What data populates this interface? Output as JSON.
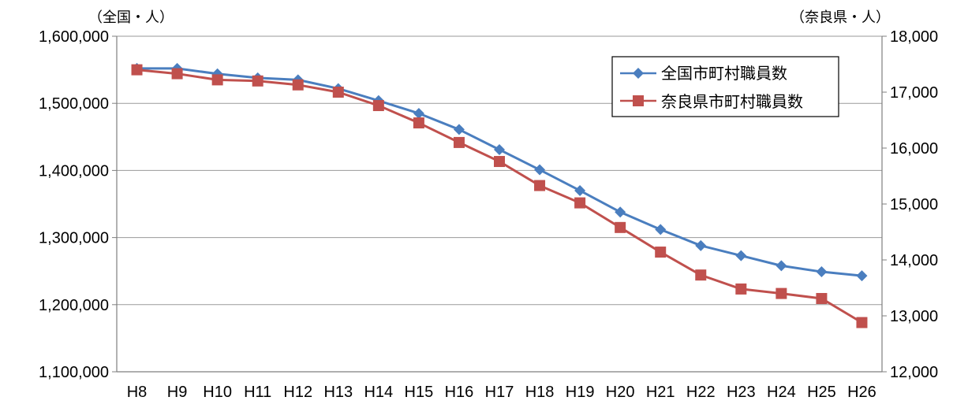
{
  "chart_data": {
    "type": "line",
    "categories": [
      "H8",
      "H9",
      "H10",
      "H11",
      "H12",
      "H13",
      "H14",
      "H15",
      "H16",
      "H17",
      "H18",
      "H19",
      "H20",
      "H21",
      "H22",
      "H23",
      "H24",
      "H25",
      "H26"
    ],
    "left_unit": "（全国・人）",
    "right_unit": "（奈良県・人）",
    "y_left": {
      "min": 1100000,
      "max": 1600000,
      "ticks": [
        1100000,
        1200000,
        1300000,
        1400000,
        1500000,
        1600000
      ],
      "tick_labels": [
        "1,100,000",
        "1,200,000",
        "1,300,000",
        "1,400,000",
        "1,500,000",
        "1,600,000"
      ]
    },
    "y_right": {
      "min": 12000,
      "max": 18000,
      "ticks": [
        12000,
        13000,
        14000,
        15000,
        16000,
        17000,
        18000
      ],
      "tick_labels": [
        "12,000",
        "13,000",
        "14,000",
        "15,000",
        "16,000",
        "17,000",
        "18,000"
      ]
    },
    "series": [
      {
        "name": "全国市町村職員数",
        "axis": "left",
        "color": "#4a7ebf",
        "marker": "diamond",
        "values": [
          1552000,
          1552000,
          1544000,
          1538000,
          1535000,
          1522000,
          1504000,
          1485000,
          1461000,
          1431000,
          1401000,
          1370000,
          1338000,
          1312000,
          1288000,
          1273000,
          1258000,
          1249000,
          1243000
        ]
      },
      {
        "name": "奈良県市町村職員数",
        "axis": "right",
        "color": "#c0504d",
        "marker": "square",
        "values": [
          17400,
          17330,
          17220,
          17200,
          17130,
          17000,
          16760,
          16450,
          16100,
          15760,
          15330,
          15020,
          14580,
          14140,
          13730,
          13480,
          13400,
          13310,
          12880
        ]
      }
    ],
    "legend_position": "top-right",
    "grid": "horizontal"
  }
}
